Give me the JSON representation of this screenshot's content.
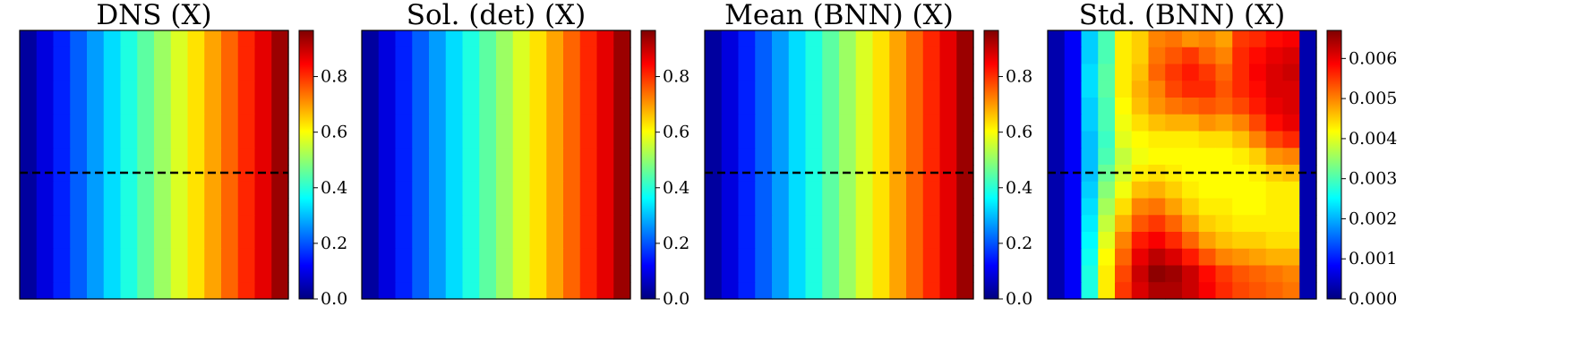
{
  "colormap": "jet",
  "colormap_stops": [
    "#00007f",
    "#0000ff",
    "#007fff",
    "#00ffff",
    "#7fff7f",
    "#ffff00",
    "#ff7f00",
    "#ff0000",
    "#7f0000"
  ],
  "dashed_line_color": "#000000",
  "chart_data": [
    {
      "type": "heatmap",
      "title": "DNS (X)",
      "grid_size": [
        16,
        16
      ],
      "value_range": [
        0.0,
        0.966
      ],
      "colorbar_ticks": [
        "0.0",
        "0.2",
        "0.4",
        "0.6",
        "0.8"
      ],
      "colorbar_tick_values": [
        0.0,
        0.2,
        0.4,
        0.6,
        0.8
      ],
      "dashed_line_y": 0.53,
      "column_values": [
        0.03,
        0.09,
        0.15,
        0.21,
        0.27,
        0.33,
        0.39,
        0.45,
        0.51,
        0.57,
        0.63,
        0.69,
        0.75,
        0.81,
        0.87,
        0.94
      ]
    },
    {
      "type": "heatmap",
      "title": "Sol. (det) (X)",
      "grid_size": [
        16,
        16
      ],
      "value_range": [
        0.0,
        0.966
      ],
      "colorbar_ticks": [
        "0.0",
        "0.2",
        "0.4",
        "0.6",
        "0.8"
      ],
      "colorbar_tick_values": [
        0.0,
        0.2,
        0.4,
        0.6,
        0.8
      ],
      "column_values": [
        0.03,
        0.09,
        0.15,
        0.21,
        0.27,
        0.33,
        0.39,
        0.45,
        0.51,
        0.57,
        0.63,
        0.69,
        0.75,
        0.81,
        0.87,
        0.94
      ]
    },
    {
      "type": "heatmap",
      "title": "Mean (BNN) (X)",
      "grid_size": [
        16,
        16
      ],
      "value_range": [
        0.0,
        0.966
      ],
      "colorbar_ticks": [
        "0.0",
        "0.2",
        "0.4",
        "0.6",
        "0.8"
      ],
      "colorbar_tick_values": [
        0.0,
        0.2,
        0.4,
        0.6,
        0.8
      ],
      "dashed_line_y": 0.53,
      "column_values": [
        0.03,
        0.09,
        0.15,
        0.21,
        0.27,
        0.33,
        0.39,
        0.45,
        0.51,
        0.57,
        0.63,
        0.69,
        0.75,
        0.81,
        0.87,
        0.94
      ]
    },
    {
      "type": "heatmap",
      "title": "Std. (BNN) (X)",
      "grid_size": [
        16,
        16
      ],
      "value_range": [
        0.0,
        0.0067
      ],
      "colorbar_ticks": [
        "0.000",
        "0.001",
        "0.002",
        "0.003",
        "0.004",
        "0.005",
        "0.006"
      ],
      "colorbar_tick_values": [
        0.0,
        0.001,
        0.002,
        0.003,
        0.004,
        0.005,
        0.006
      ],
      "dashed_line_y": 0.53,
      "values": [
        [
          0.0003,
          0.0008,
          0.0022,
          0.003,
          0.0043,
          0.0045,
          0.005,
          0.0051,
          0.0049,
          0.005,
          0.0048,
          0.0055,
          0.0056,
          0.0058,
          0.0059,
          0.0003
        ],
        [
          0.0003,
          0.0008,
          0.0022,
          0.003,
          0.0043,
          0.0045,
          0.0051,
          0.0053,
          0.0055,
          0.0052,
          0.005,
          0.0056,
          0.0058,
          0.006,
          0.0061,
          0.0003
        ],
        [
          0.0003,
          0.0008,
          0.0023,
          0.0031,
          0.0043,
          0.0046,
          0.0052,
          0.0055,
          0.0057,
          0.0055,
          0.0052,
          0.0056,
          0.0059,
          0.0061,
          0.0062,
          0.0003
        ],
        [
          0.0003,
          0.0008,
          0.0023,
          0.0031,
          0.0043,
          0.0047,
          0.005,
          0.0054,
          0.0056,
          0.0056,
          0.0053,
          0.0056,
          0.0058,
          0.0061,
          0.0061,
          0.0003
        ],
        [
          0.0003,
          0.0008,
          0.0022,
          0.003,
          0.0042,
          0.0046,
          0.0049,
          0.0051,
          0.0052,
          0.0053,
          0.0052,
          0.0054,
          0.0057,
          0.006,
          0.0061,
          0.0003
        ],
        [
          0.0003,
          0.0008,
          0.0022,
          0.003,
          0.0041,
          0.0044,
          0.0046,
          0.0047,
          0.0047,
          0.0049,
          0.0048,
          0.005,
          0.0054,
          0.0058,
          0.006,
          0.0003
        ],
        [
          0.0003,
          0.0008,
          0.0021,
          0.0029,
          0.004,
          0.0042,
          0.0043,
          0.0043,
          0.0043,
          0.0044,
          0.0044,
          0.0046,
          0.005,
          0.0054,
          0.0056,
          0.0003
        ],
        [
          0.0003,
          0.0008,
          0.0021,
          0.003,
          0.0038,
          0.0041,
          0.0042,
          0.0042,
          0.0042,
          0.0042,
          0.0042,
          0.0043,
          0.0045,
          0.0049,
          0.005,
          0.0003
        ],
        [
          0.0003,
          0.0008,
          0.0021,
          0.0032,
          0.0039,
          0.0043,
          0.0044,
          0.0043,
          0.0042,
          0.0042,
          0.0042,
          0.0042,
          0.0043,
          0.0045,
          0.0046,
          0.0003
        ],
        [
          0.0003,
          0.0008,
          0.0022,
          0.0034,
          0.0041,
          0.0046,
          0.0047,
          0.0045,
          0.0043,
          0.0042,
          0.0042,
          0.0042,
          0.0042,
          0.0043,
          0.0043,
          0.0003
        ],
        [
          0.0003,
          0.0008,
          0.0023,
          0.0036,
          0.0044,
          0.005,
          0.0051,
          0.0048,
          0.0045,
          0.0043,
          0.0043,
          0.0042,
          0.0042,
          0.0043,
          0.0043,
          0.0003
        ],
        [
          0.0003,
          0.0008,
          0.0024,
          0.0038,
          0.0047,
          0.0053,
          0.0055,
          0.0052,
          0.0048,
          0.0045,
          0.0044,
          0.0043,
          0.0043,
          0.0043,
          0.0043,
          0.0003
        ],
        [
          0.0003,
          0.0008,
          0.0025,
          0.004,
          0.005,
          0.0057,
          0.0059,
          0.0056,
          0.0052,
          0.0048,
          0.0046,
          0.0045,
          0.0045,
          0.0044,
          0.0044,
          0.0003
        ],
        [
          0.0003,
          0.0008,
          0.0026,
          0.0042,
          0.0052,
          0.006,
          0.0063,
          0.0061,
          0.0057,
          0.0053,
          0.005,
          0.0049,
          0.0048,
          0.0047,
          0.0047,
          0.0003
        ],
        [
          0.0003,
          0.0008,
          0.0027,
          0.0043,
          0.0054,
          0.0062,
          0.0066,
          0.0065,
          0.0062,
          0.0058,
          0.0055,
          0.0053,
          0.0052,
          0.0051,
          0.005,
          0.0003
        ],
        [
          0.0003,
          0.0008,
          0.0027,
          0.0043,
          0.0055,
          0.0061,
          0.0064,
          0.0064,
          0.0062,
          0.0059,
          0.0056,
          0.0054,
          0.0053,
          0.0052,
          0.0051,
          0.0003
        ]
      ]
    }
  ]
}
